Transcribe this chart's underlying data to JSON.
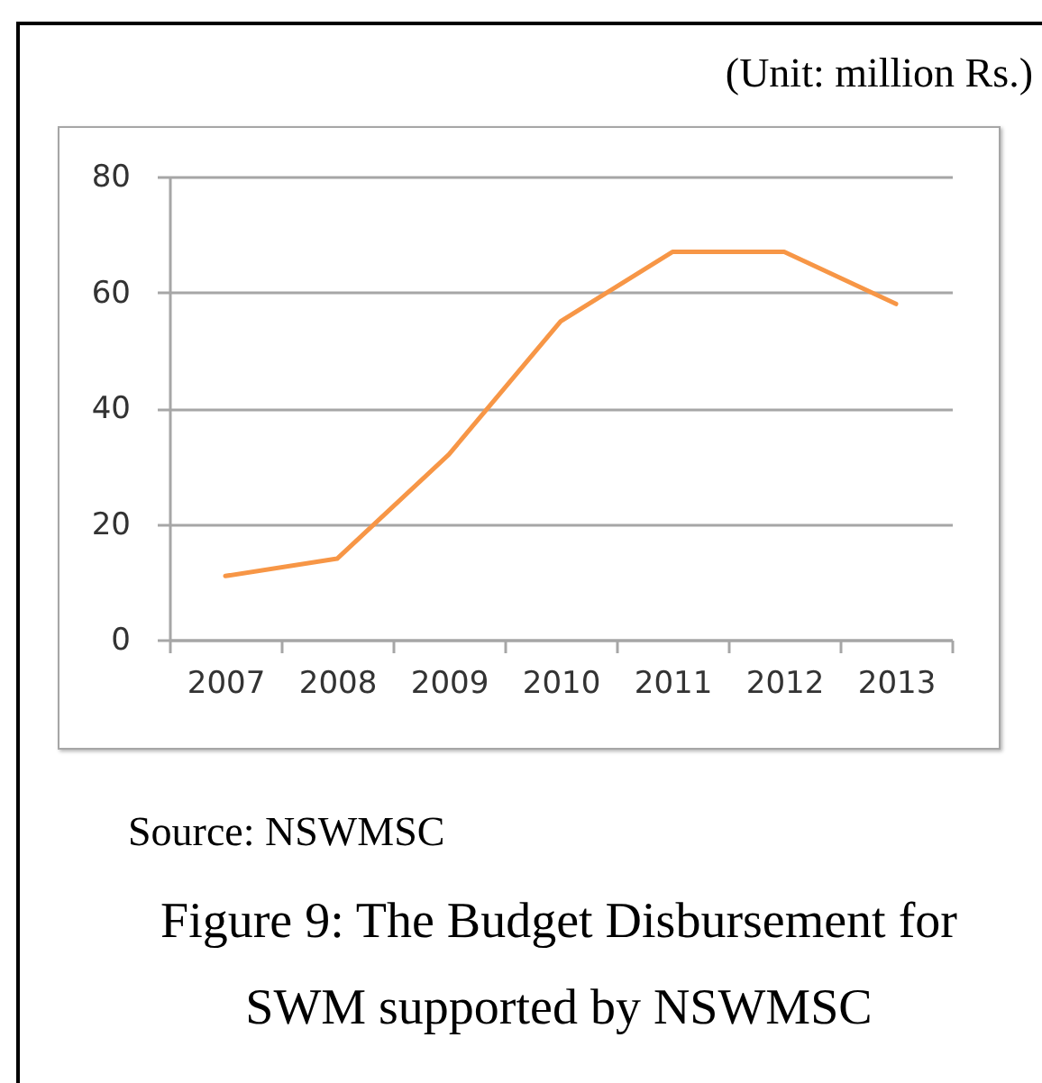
{
  "chart_data": {
    "type": "line",
    "title": "Figure 9: The Budget Disbursement for SWM supported by NSWMSC",
    "annotations": [
      "(Unit: million Rs.)",
      "Source: NSWMSC"
    ],
    "categories": [
      "2007",
      "2008",
      "2009",
      "2010",
      "2011",
      "2012",
      "2013"
    ],
    "series": [
      {
        "color": "#f79646",
        "values": [
          11,
          14,
          32,
          55,
          67,
          67,
          58
        ]
      }
    ],
    "ylim": [
      0,
      80
    ],
    "yticks": [
      0,
      20,
      40,
      60,
      80
    ],
    "grid": "y"
  }
}
